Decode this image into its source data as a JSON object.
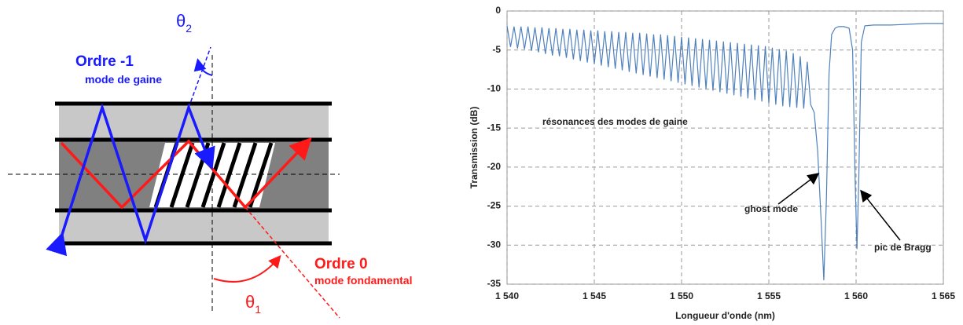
{
  "diagram": {
    "order_minus1": {
      "title": "Ordre -1",
      "subtitle": "mode de gaine"
    },
    "order_0": {
      "title": "Ordre 0",
      "subtitle": "mode fondamental"
    },
    "theta_2": {
      "symbol": "θ",
      "index": "2"
    },
    "theta_1": {
      "symbol": "θ",
      "index": "1"
    }
  },
  "chart_data": {
    "type": "line",
    "x_label": "Longueur d'onde (nm)",
    "y_label": "Transmission (dB)",
    "grid": true,
    "xlim": [
      1540,
      1565
    ],
    "xticks": [
      {
        "value": 1540,
        "label": "1 540"
      },
      {
        "value": 1545,
        "label": "1 545"
      },
      {
        "value": 1550,
        "label": "1 550"
      },
      {
        "value": 1555,
        "label": "1 555"
      },
      {
        "value": 1560,
        "label": "1 560"
      },
      {
        "value": 1565,
        "label": "1 565"
      }
    ],
    "ylim": [
      -35,
      0
    ],
    "yticks": [
      0,
      -5,
      -10,
      -15,
      -20,
      -25,
      -30,
      -35
    ],
    "annotations": [
      "résonances des modes de gaine",
      "ghost mode",
      "pic de Bragg"
    ],
    "series": [
      {
        "color": "#4f81bd",
        "x": [
          1540,
          1540.2,
          1540.4,
          1540.6,
          1540.8,
          1541,
          1541.2,
          1541.4,
          1541.6,
          1541.8,
          1542,
          1542.2,
          1542.4,
          1542.6,
          1542.8,
          1543,
          1543.2,
          1543.4,
          1543.6,
          1543.8,
          1544,
          1544.2,
          1544.4,
          1544.6,
          1544.8,
          1545,
          1545.2,
          1545.4,
          1545.6,
          1545.8,
          1546,
          1546.2,
          1546.4,
          1546.6,
          1546.8,
          1547,
          1547.2,
          1547.4,
          1547.6,
          1547.8,
          1548,
          1548.2,
          1548.4,
          1548.6,
          1548.8,
          1549,
          1549.2,
          1549.4,
          1549.6,
          1549.8,
          1550,
          1550.2,
          1550.4,
          1550.6,
          1550.8,
          1551,
          1551.2,
          1551.4,
          1551.6,
          1551.8,
          1552,
          1552.2,
          1552.4,
          1552.6,
          1552.8,
          1553,
          1553.2,
          1553.4,
          1553.6,
          1553.8,
          1554,
          1554.2,
          1554.4,
          1554.6,
          1554.8,
          1555,
          1555.2,
          1555.4,
          1555.6,
          1555.8,
          1556,
          1556.2,
          1556.4,
          1556.6,
          1556.8,
          1557,
          1557.2,
          1557.4,
          1557.6,
          1557.8,
          1558,
          1558.15,
          1558.3,
          1558.45,
          1558.6,
          1558.8,
          1559,
          1559.3,
          1559.6,
          1559.8,
          1559.95,
          1560.05,
          1560.15,
          1560.3,
          1560.5,
          1561,
          1562,
          1563,
          1564,
          1565
        ],
        "values": [
          -1.9,
          -4.6,
          -2,
          -4.8,
          -2,
          -4.9,
          -2,
          -5.1,
          -2.1,
          -5.3,
          -2.1,
          -5.5,
          -2.2,
          -5.7,
          -2.2,
          -5.8,
          -2.3,
          -6,
          -2.3,
          -6.2,
          -2.4,
          -6.4,
          -2.4,
          -6.6,
          -2.5,
          -6.8,
          -2.5,
          -7,
          -2.6,
          -7.2,
          -2.6,
          -7.4,
          -2.7,
          -7.6,
          -2.7,
          -7.8,
          -2.8,
          -8,
          -2.8,
          -8.2,
          -2.9,
          -8.4,
          -3,
          -8.6,
          -3,
          -8.8,
          -3.1,
          -9,
          -3.2,
          -9.2,
          -3.3,
          -9.4,
          -3.4,
          -9.6,
          -3.5,
          -9.8,
          -3.6,
          -10,
          -3.7,
          -10.2,
          -3.8,
          -10.4,
          -3.9,
          -10.6,
          -4,
          -10.8,
          -4.1,
          -11,
          -4.2,
          -11.2,
          -4.3,
          -11.4,
          -4.4,
          -11.6,
          -4.5,
          -11.8,
          -4.7,
          -12,
          -4.9,
          -12.2,
          -5.1,
          -12.3,
          -5.4,
          -12.4,
          -5.8,
          -12.5,
          -6.5,
          -12,
          -13,
          -18,
          -27,
          -34.5,
          -24,
          -8,
          -3,
          -2.2,
          -2,
          -2,
          -2.2,
          -5,
          -22,
          -30.5,
          -22,
          -4,
          -1.9,
          -1.8,
          -1.8,
          -1.7,
          -1.6,
          -1.6
        ]
      }
    ]
  }
}
